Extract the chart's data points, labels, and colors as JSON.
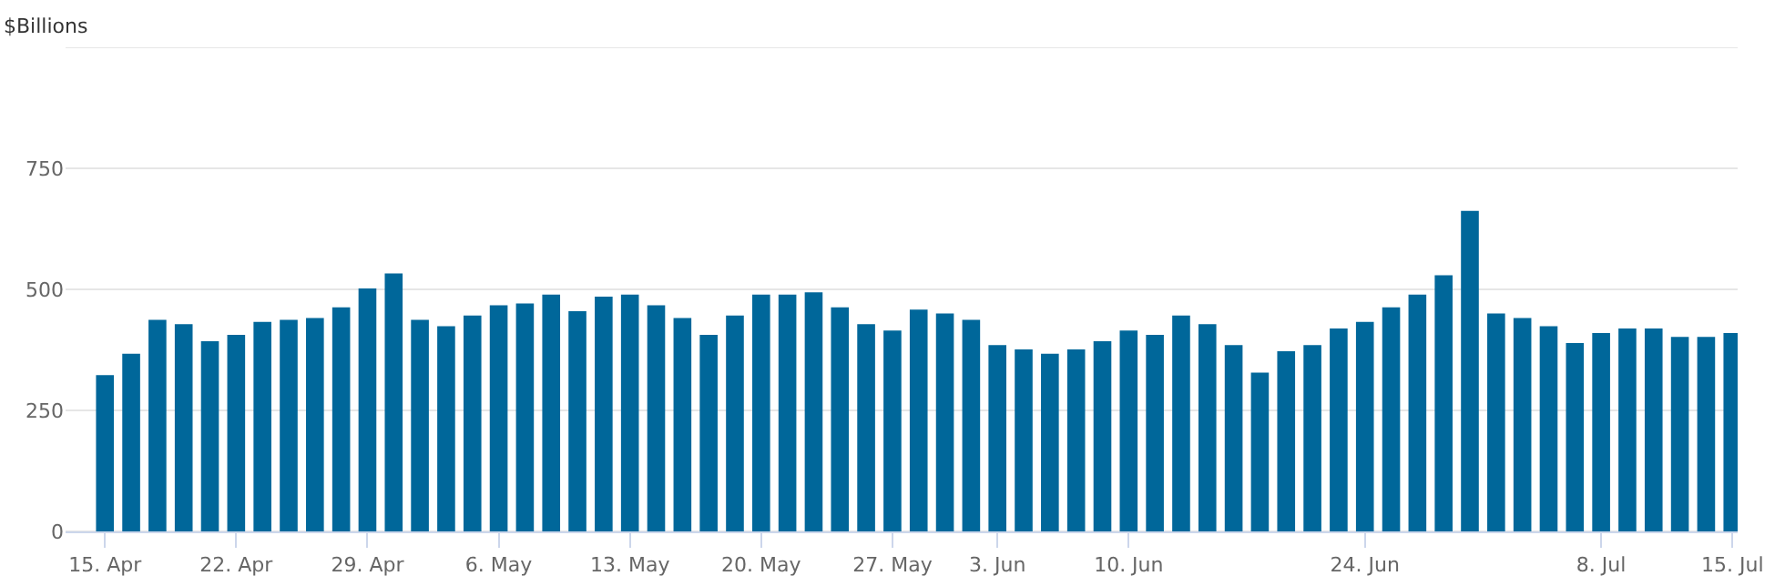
{
  "chart_data": {
    "type": "bar",
    "ylabel": "$Billions",
    "color": "#00679a",
    "categories": [
      "15. Apr",
      null,
      null,
      null,
      null,
      "22. Apr",
      null,
      null,
      null,
      null,
      "29. Apr",
      null,
      null,
      null,
      null,
      "6. May",
      null,
      null,
      null,
      null,
      "13. May",
      null,
      null,
      null,
      null,
      "20. May",
      null,
      null,
      null,
      null,
      "27. May",
      null,
      null,
      null,
      "3. Jun",
      null,
      null,
      null,
      null,
      "10. Jun",
      null,
      null,
      null,
      null,
      null,
      null,
      null,
      null,
      "24. Jun",
      null,
      null,
      null,
      null,
      null,
      null,
      null,
      null,
      "8. Jul",
      null,
      null,
      null,
      null,
      "15. Jul"
    ],
    "values": [
      323,
      367,
      437,
      428,
      393,
      406,
      433,
      437,
      441,
      463,
      502,
      533,
      437,
      424,
      446,
      467,
      471,
      489,
      455,
      485,
      489,
      467,
      441,
      406,
      446,
      489,
      489,
      494,
      463,
      428,
      415,
      458,
      450,
      437,
      385,
      376,
      367,
      376,
      393,
      415,
      406,
      446,
      428,
      385,
      328,
      372,
      385,
      419,
      433,
      463,
      489,
      529,
      662,
      450,
      441,
      424,
      389,
      410,
      419,
      419,
      402,
      402,
      410
    ],
    "ylim": [
      0,
      1000
    ],
    "yticks": [
      0,
      250,
      500,
      750,
      {
        "value": 1000,
        "label": null
      }
    ],
    "grid": "y",
    "legend": false
  }
}
